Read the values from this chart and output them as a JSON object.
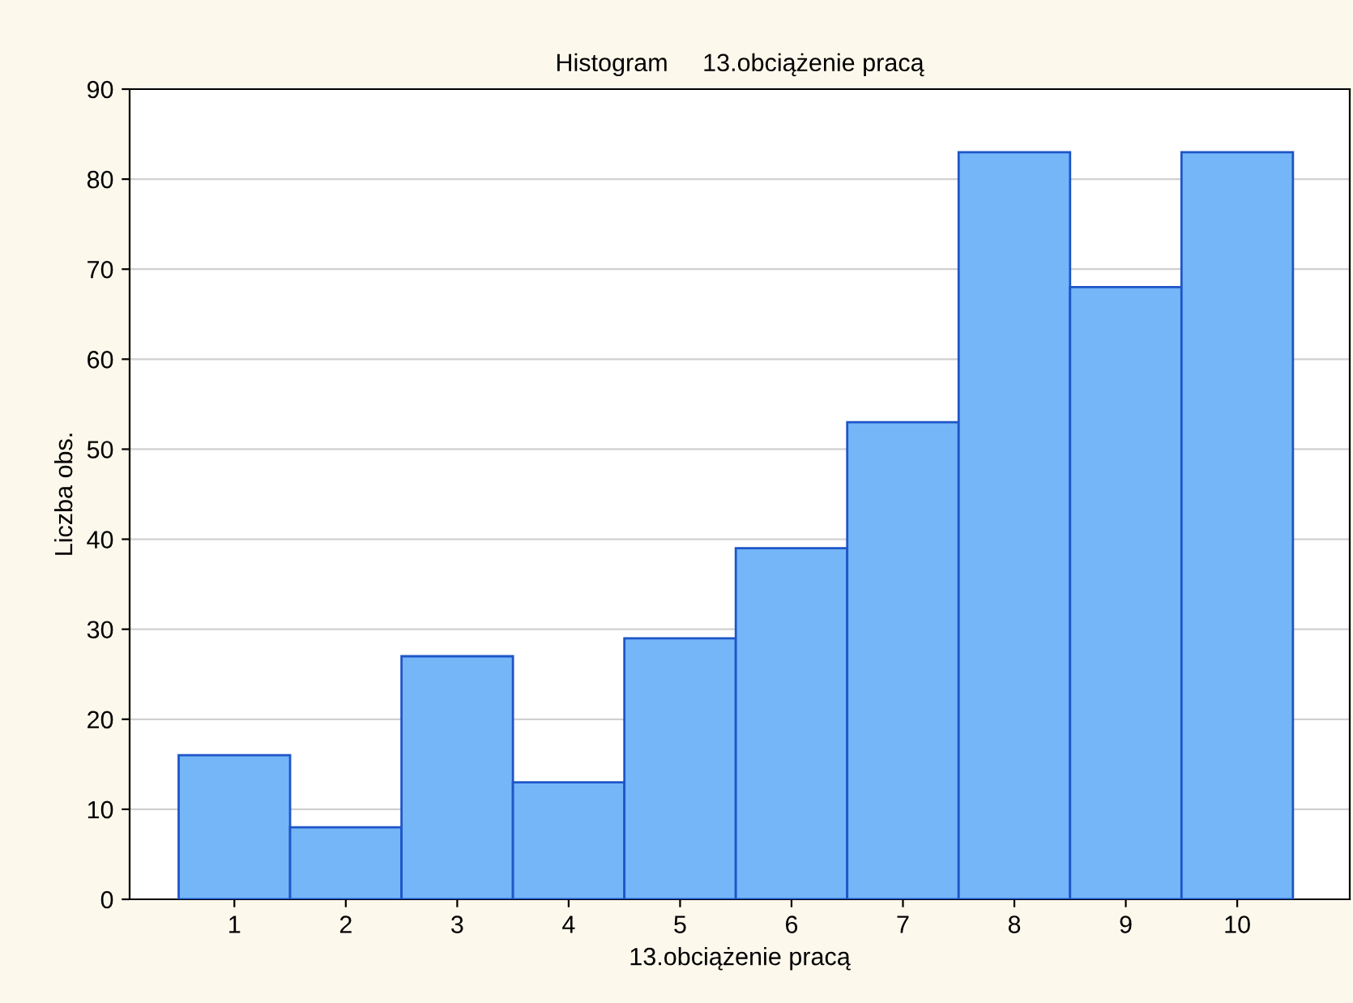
{
  "chart_data": {
    "type": "bar",
    "title": "Histogram     13.obciążenie pracą",
    "xlabel": "13.obciążenie pracą",
    "ylabel": "Liczba obs.",
    "categories": [
      "1",
      "2",
      "3",
      "4",
      "5",
      "6",
      "7",
      "8",
      "9",
      "10"
    ],
    "values": [
      16,
      8,
      27,
      13,
      29,
      39,
      53,
      83,
      68,
      83
    ],
    "color": "#74b6f7",
    "ylim": [
      0,
      90
    ],
    "yticks": [
      0,
      10,
      20,
      30,
      40,
      50,
      60,
      70,
      80,
      90
    ],
    "grid": "y"
  }
}
